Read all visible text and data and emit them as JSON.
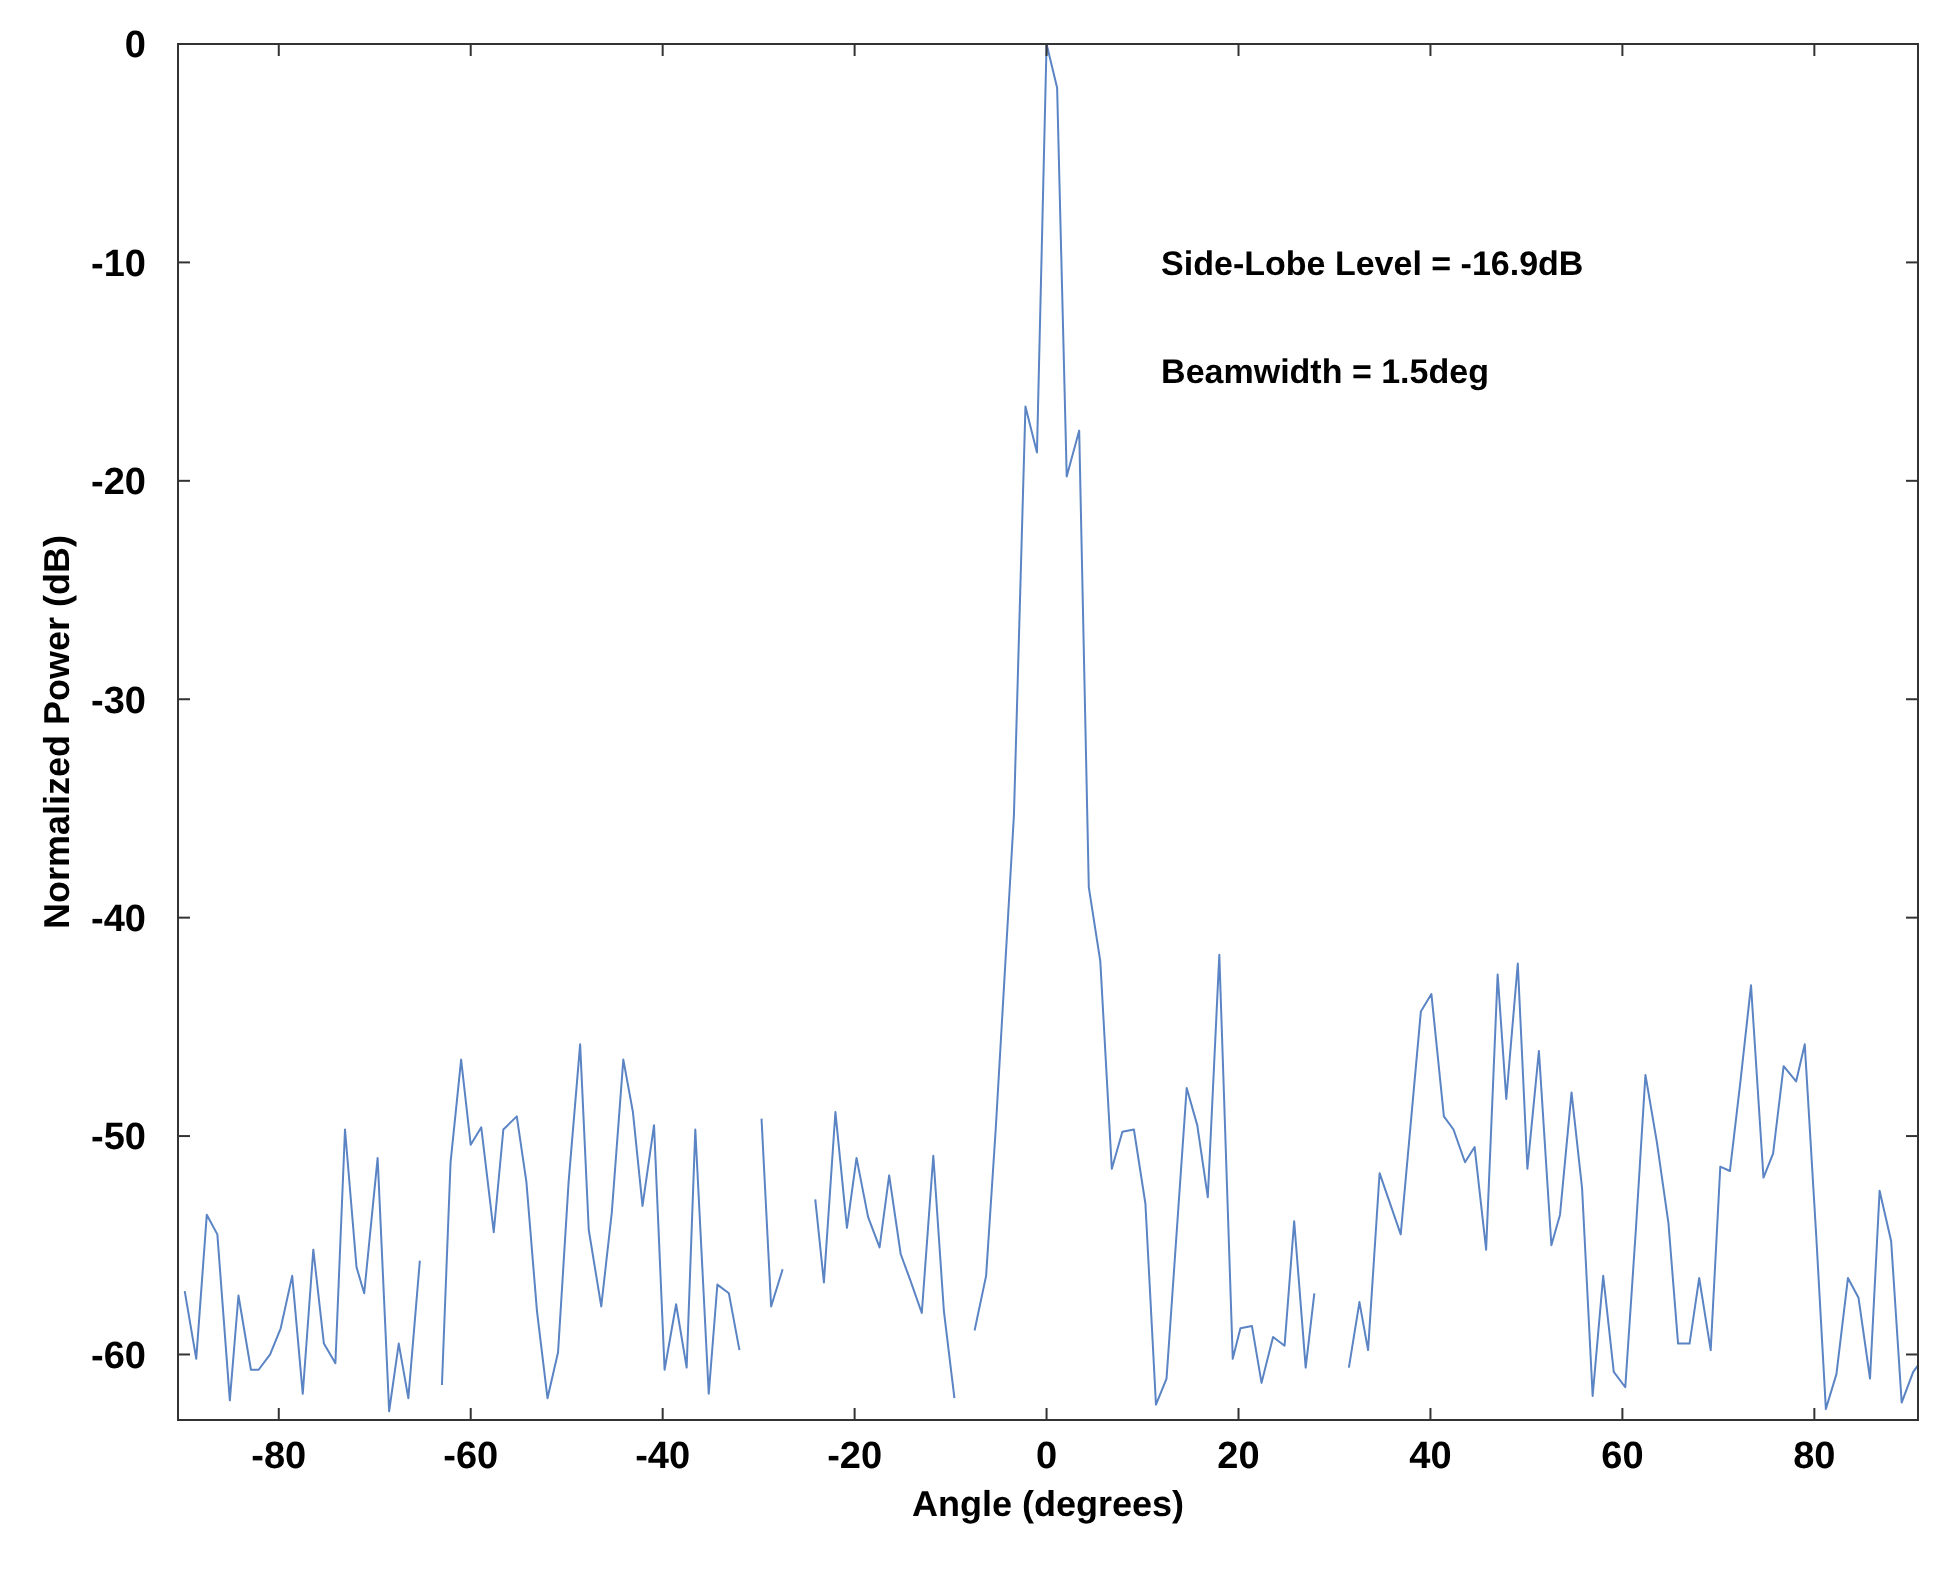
{
  "chart_data": {
    "type": "line",
    "xlabel": "Angle (degrees)",
    "ylabel": "Normalized Power (dB)",
    "annotations": [
      "Side-Lobe Level = -16.9dB",
      "Beamwidth = 1.5deg"
    ],
    "xlim": [
      -90.5,
      90.8
    ],
    "ylim": [
      -63,
      0
    ],
    "xticks": [
      -80,
      -60,
      -40,
      -20,
      0,
      20,
      40,
      60,
      80
    ],
    "yticks": [
      -60,
      -50,
      -40,
      -30,
      -20,
      -10,
      0
    ],
    "grid": false,
    "marker": "none",
    "line_style": "solid",
    "series": [
      {
        "color": "#5b84c4",
        "x": [
          -89.8,
          -88.6,
          -87.5,
          -86.4,
          -85.1,
          -84.2,
          -82.9,
          -82.1,
          -80.9,
          -79.8,
          -78.6,
          -77.5,
          -76.4,
          -75.3,
          -74.1,
          -73.1,
          -71.9,
          -71.1,
          -69.7,
          -68.5,
          -67.5,
          -66.5,
          -65.3,
          -64.1,
          -63.0,
          -62.1,
          -61.0,
          -60.0,
          -58.9,
          -57.6,
          -56.6,
          -55.2,
          -54.2,
          -53.1,
          -52.0,
          -50.9,
          -49.8,
          -48.6,
          -47.7,
          -46.4,
          -45.3,
          -44.1,
          -43.1,
          -42.1,
          -40.9,
          -39.8,
          -38.6,
          -37.5,
          -36.6,
          -35.2,
          -34.3,
          -33.1,
          -32.0,
          -30.9,
          -29.7,
          -28.7,
          -27.5,
          -26.7,
          -25.4,
          -24.1,
          -23.2,
          -22.0,
          -20.8,
          -19.8,
          -18.6,
          -17.4,
          -16.4,
          -15.2,
          -14.2,
          -13.0,
          -11.8,
          -10.7,
          -9.6,
          -8.6,
          -7.5,
          -6.3,
          -5.3,
          -3.4,
          -2.2,
          -1.0,
          0,
          1.1,
          2.1,
          3.4,
          4.4,
          5.6,
          6.8,
          7.9,
          9.1,
          10.3,
          11.4,
          12.5,
          14.6,
          15.7,
          16.8,
          18.0,
          19.4,
          20.2,
          21.4,
          22.4,
          23.6,
          24.8,
          25.8,
          27.0,
          27.9,
          29.3,
          30.3,
          31.5,
          32.6,
          33.5,
          34.7,
          36.9,
          39.0,
          40.1,
          41.4,
          42.4,
          43.6,
          44.6,
          45.8,
          47.0,
          47.9,
          49.1,
          50.1,
          51.3,
          52.6,
          53.5,
          54.7,
          55.8,
          56.9,
          58.0,
          59.1,
          60.3,
          61.4,
          62.4,
          63.6,
          64.8,
          65.8,
          67.0,
          68.0,
          69.2,
          70.2,
          71.2,
          72.3,
          73.4,
          74.7,
          75.7,
          76.8,
          78.1,
          79.0,
          80.2,
          81.2,
          82.3,
          83.5,
          84.6,
          85.8,
          86.8,
          88.0,
          89.1,
          90.3,
          90.8
        ],
        "values": [
          -57.1,
          -60.2,
          -53.6,
          -54.5,
          -62.1,
          -57.3,
          -60.7,
          -60.7,
          -60.0,
          -58.8,
          -56.4,
          -61.8,
          -55.2,
          -59.5,
          -60.4,
          -49.7,
          -56.0,
          -57.2,
          -51.0,
          -62.6,
          -59.5,
          -62.0,
          -55.7,
          null,
          -61.4,
          -51.2,
          -46.5,
          -50.4,
          -49.6,
          -54.4,
          -49.7,
          -49.1,
          -52.1,
          -58.0,
          -62.0,
          -59.9,
          -52.1,
          -45.8,
          -54.3,
          -57.8,
          -53.5,
          -46.5,
          -48.9,
          -53.2,
          -49.5,
          -60.7,
          -57.7,
          -60.6,
          -49.7,
          -61.8,
          -56.8,
          -57.2,
          -59.8,
          null,
          -49.2,
          -57.8,
          -56.1,
          null,
          null,
          -52.9,
          -56.7,
          -48.9,
          -54.2,
          -51.0,
          -53.7,
          -55.1,
          -51.8,
          -55.4,
          -56.6,
          -58.1,
          -50.9,
          -58.0,
          -62.0,
          null,
          -58.9,
          -56.4,
          -49.7,
          -35.3,
          -16.6,
          -18.7,
          0,
          -2.0,
          -19.8,
          -17.7,
          -38.6,
          -42.0,
          -51.5,
          -49.8,
          -49.7,
          -53.1,
          -62.3,
          -61.1,
          -47.8,
          -49.5,
          -52.8,
          -41.7,
          -60.2,
          -58.8,
          -58.7,
          -61.3,
          -59.2,
          -59.6,
          -53.9,
          -60.6,
          -57.2,
          null,
          null,
          -60.6,
          -57.6,
          -59.8,
          -51.7,
          -54.5,
          -44.3,
          -43.5,
          -49.1,
          -49.7,
          -51.2,
          -50.5,
          -55.2,
          -42.6,
          -48.3,
          -42.1,
          -51.5,
          -46.1,
          -55.0,
          -53.6,
          -48.0,
          -52.4,
          -61.9,
          -56.4,
          -60.8,
          -61.5,
          -54.3,
          -47.2,
          -50.3,
          -54.0,
          -59.5,
          -59.5,
          -56.5,
          -59.8,
          -51.4,
          -51.6,
          -47.5,
          -43.1,
          -51.9,
          -50.8,
          -46.8,
          -47.5,
          -45.8,
          -54.6,
          -62.5,
          -60.9,
          -56.5,
          -57.4,
          -61.1,
          -52.5,
          -54.8,
          -62.2,
          -60.8,
          -60.5
        ]
      }
    ]
  }
}
